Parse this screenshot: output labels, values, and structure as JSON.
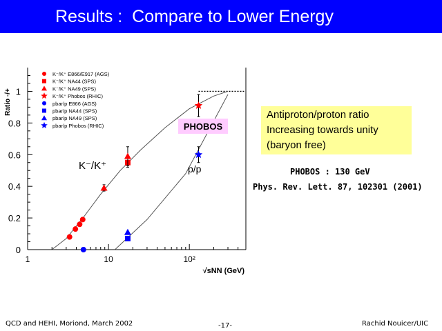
{
  "slide": {
    "title": "Results :  Compare to Lower Energy",
    "note_lines": [
      "Antiproton/proton ratio",
      "Increasing towards unity",
      "(baryon free)"
    ],
    "pub_line1": "PHOBOS : 130 GeV",
    "pub_line2": "Phys. Rev. Lett. 87, 102301 (2001)",
    "footer_left": "QCD and HEHI, Moriond, March 2002",
    "footer_center": "-17-",
    "footer_right": "Rachid Nouicer/UIC",
    "colors": {
      "title_bg": "#0000ff",
      "note_bg": "#ffff99",
      "phobos_bg": "#ffccff",
      "red": "#ff0000",
      "blue": "#0000ff"
    }
  },
  "chart_data": {
    "type": "scatter",
    "ylabel": "Ratio -/+",
    "xlabel": "√sNN (GeV)",
    "xscale": "log",
    "xlim": [
      1,
      500
    ],
    "ylim": [
      0,
      1.15
    ],
    "x_ticks": [
      {
        "v": 1,
        "label": "1"
      },
      {
        "v": 10,
        "label": "10"
      },
      {
        "v": 100,
        "label": "10²"
      }
    ],
    "y_ticks": [
      0,
      0.2,
      0.4,
      0.6,
      0.8,
      1
    ],
    "y_tick_labels": [
      "0",
      "0.2",
      "0.4",
      "0.6",
      "0.8",
      "1"
    ],
    "reference_line": {
      "y": 1,
      "from_x": 130,
      "to_x": 500,
      "style": "dotted"
    },
    "annotations": {
      "phobos": "PHOBOS",
      "kaon": "K⁻/K⁺",
      "proton": "p/p"
    },
    "legend": {
      "placement": "top-left",
      "entries": [
        {
          "label": "K⁻/K⁺ E866/E917 (AGS)",
          "marker": "circle",
          "color": "#ff0000"
        },
        {
          "label": "K⁻/K⁺ NA44 (SPS)",
          "marker": "square",
          "color": "#ff0000"
        },
        {
          "label": "K⁻/K⁺ NA49 (SPS)",
          "marker": "triangle",
          "color": "#ff0000"
        },
        {
          "label": "K⁻/K⁺ Phobos (RHIC)",
          "marker": "star",
          "color": "#ff0000"
        },
        {
          "label": "pbar/p E866 (AGS)",
          "marker": "circle",
          "color": "#0000ff"
        },
        {
          "label": "pbar/p NA44 (SPS)",
          "marker": "square",
          "color": "#0000ff"
        },
        {
          "label": "pbar/p NA49 (SPS)",
          "marker": "triangle",
          "color": "#0000ff"
        },
        {
          "label": "pbar/p Phobos (RHIC)",
          "marker": "star",
          "color": "#0000ff"
        }
      ]
    },
    "series": [
      {
        "name": "K⁻/K⁺ E866/E917 (AGS)",
        "marker": "circle",
        "color": "#ff0000",
        "points": [
          {
            "x": 3.3,
            "y": 0.08
          },
          {
            "x": 3.9,
            "y": 0.13
          },
          {
            "x": 4.4,
            "y": 0.16
          },
          {
            "x": 4.8,
            "y": 0.19
          }
        ]
      },
      {
        "name": "K⁻/K⁺ NA44 (SPS)",
        "marker": "square",
        "color": "#ff0000",
        "points": [
          {
            "x": 17.3,
            "y": 0.55,
            "err": 0.03
          }
        ]
      },
      {
        "name": "K⁻/K⁺ NA49 (SPS)",
        "marker": "triangle",
        "color": "#ff0000",
        "points": [
          {
            "x": 8.8,
            "y": 0.39,
            "err": 0.02
          },
          {
            "x": 17.3,
            "y": 0.59,
            "err": 0.06
          }
        ]
      },
      {
        "name": "K⁻/K⁺ Phobos (RHIC)",
        "marker": "star",
        "color": "#ff0000",
        "points": [
          {
            "x": 130,
            "y": 0.91,
            "err": 0.07
          }
        ]
      },
      {
        "name": "pbar/p E866 (AGS)",
        "marker": "circle",
        "color": "#0000ff",
        "points": [
          {
            "x": 4.9,
            "y": 0.0
          }
        ]
      },
      {
        "name": "pbar/p NA44 (SPS)",
        "marker": "square",
        "color": "#0000ff",
        "points": [
          {
            "x": 17.3,
            "y": 0.07
          }
        ]
      },
      {
        "name": "pbar/p NA49 (SPS)",
        "marker": "triangle",
        "color": "#0000ff",
        "points": [
          {
            "x": 17.3,
            "y": 0.11
          }
        ]
      },
      {
        "name": "pbar/p Phobos (RHIC)",
        "marker": "star",
        "color": "#0000ff",
        "points": [
          {
            "x": 130,
            "y": 0.6,
            "err": 0.05
          }
        ]
      }
    ],
    "curves": [
      {
        "name": "kaon trend",
        "x": [
          2.0,
          3.0,
          5.0,
          8.0,
          14.0,
          25.0,
          50.0,
          100.0,
          200.0,
          300.0
        ],
        "y": [
          0.0,
          0.07,
          0.21,
          0.35,
          0.5,
          0.63,
          0.77,
          0.89,
          0.97,
          1.0
        ]
      },
      {
        "name": "proton trend",
        "x": [
          12.0,
          30.0,
          90.0,
          300.0
        ],
        "y": [
          0.0,
          0.19,
          0.48,
          0.98
        ]
      }
    ]
  }
}
